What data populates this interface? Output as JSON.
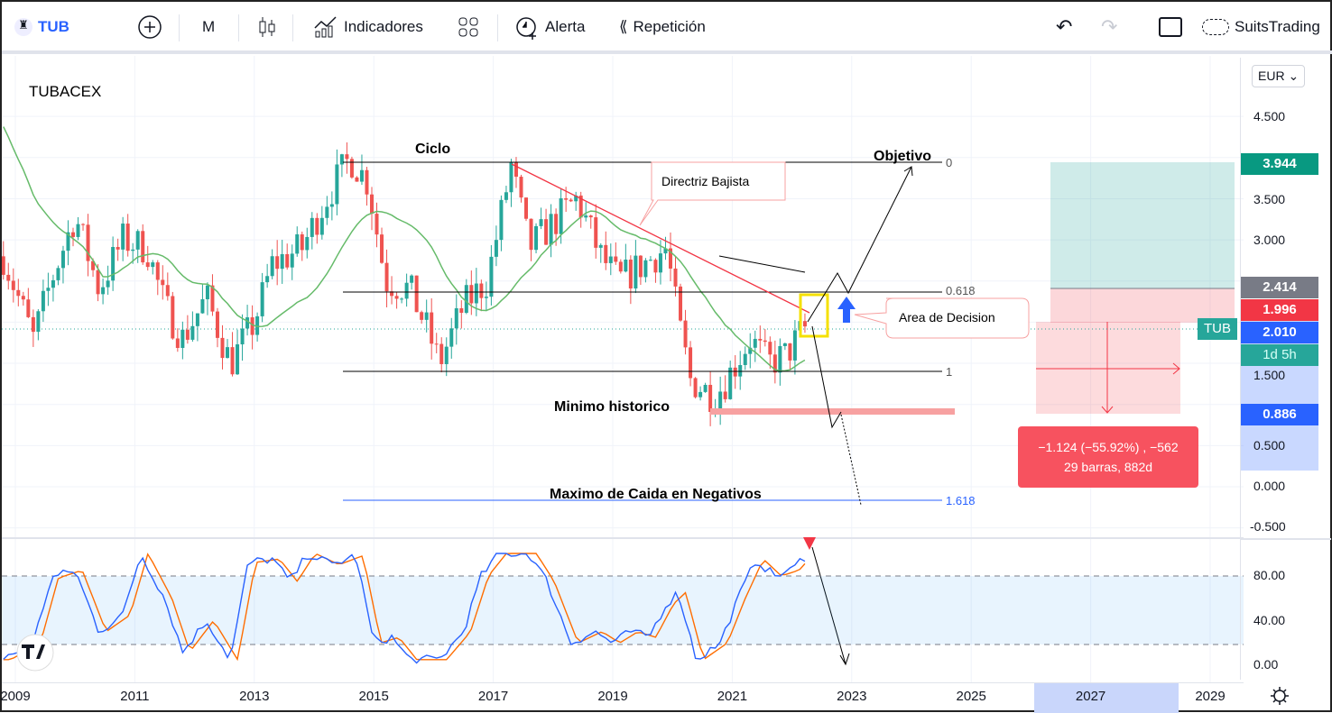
{
  "toolbar": {
    "symbol": "TUB",
    "interval": "M",
    "indicators": "Indicadores",
    "alert": "Alerta",
    "replay": "Repetición",
    "account": "SuitsTrading"
  },
  "chart": {
    "title": "TUBACEX",
    "currency": "EUR"
  },
  "price_axis": {
    "ticks": [
      "4.500",
      "3.500",
      "3.000",
      "1.500",
      "0.500",
      "0.000",
      "-0.500"
    ],
    "tags": {
      "target": "3.944",
      "entry": "2.414",
      "stop": "1.996",
      "current_blue": "2.010",
      "symbol": "TUB",
      "countdown": "1d 5h",
      "low": "0.886"
    }
  },
  "osc_axis": {
    "ticks": [
      "80.00",
      "40.00",
      "0.00"
    ]
  },
  "time_axis": {
    "ticks": [
      "2009",
      "2011",
      "2013",
      "2015",
      "2017",
      "2019",
      "2021",
      "2023",
      "2025",
      "2027",
      "2029"
    ]
  },
  "annotations": {
    "ciclo": "Ciclo",
    "objetivo": "Objetivo",
    "directriz": "Directriz Bajista",
    "area": "Area de Decision",
    "minimo": "Minimo historico",
    "maximo": "Maximo de Caida en Negativos",
    "fib_0": "0",
    "fib_618": "0.618",
    "fib_1": "1",
    "fib_1618": "1.618"
  },
  "measure": {
    "line1": "−1.124 (−55.92%) , −562",
    "line2": "29 barras, 882d"
  },
  "colors": {
    "up": "#26a69a",
    "down": "#ef5350",
    "ma": "#66bb6a",
    "k": "#2962ff",
    "d": "#ff6d00"
  },
  "chart_data": {
    "type": "candlestick",
    "price_anchors": [
      [
        2008.8,
        2.8
      ],
      [
        2009.3,
        1.8
      ],
      [
        2009.6,
        2.5
      ],
      [
        2010.0,
        3.3
      ],
      [
        2010.4,
        2.4
      ],
      [
        2010.8,
        3.0
      ],
      [
        2011.2,
        2.9
      ],
      [
        2011.5,
        2.2
      ],
      [
        2011.8,
        1.8
      ],
      [
        2012.2,
        2.3
      ],
      [
        2012.6,
        1.5
      ],
      [
        2013.0,
        2.0
      ],
      [
        2013.3,
        2.7
      ],
      [
        2013.8,
        2.9
      ],
      [
        2014.2,
        3.5
      ],
      [
        2014.6,
        4.0
      ],
      [
        2014.9,
        3.7
      ],
      [
        2015.2,
        2.5
      ],
      [
        2015.6,
        2.4
      ],
      [
        2015.9,
        1.9
      ],
      [
        2016.1,
        1.5
      ],
      [
        2016.5,
        2.2
      ],
      [
        2016.9,
        2.5
      ],
      [
        2017.3,
        3.9
      ],
      [
        2017.6,
        2.9
      ],
      [
        2018.0,
        3.2
      ],
      [
        2018.4,
        3.5
      ],
      [
        2018.8,
        2.8
      ],
      [
        2019.1,
        2.5
      ],
      [
        2019.5,
        2.7
      ],
      [
        2019.9,
        2.9
      ],
      [
        2020.1,
        2.0
      ],
      [
        2020.3,
        1.3
      ],
      [
        2020.7,
        1.1
      ],
      [
        2020.9,
        1.3
      ],
      [
        2021.3,
        1.8
      ],
      [
        2021.6,
        1.5
      ],
      [
        2021.9,
        1.6
      ],
      [
        2022.2,
        1.92
      ]
    ],
    "stoch_anchors": [
      [
        2008.8,
        5
      ],
      [
        2009.3,
        20
      ],
      [
        2009.6,
        78
      ],
      [
        2010.0,
        85
      ],
      [
        2010.4,
        30
      ],
      [
        2010.8,
        45
      ],
      [
        2011.1,
        100
      ],
      [
        2011.5,
        60
      ],
      [
        2011.8,
        12
      ],
      [
        2012.2,
        40
      ],
      [
        2012.6,
        5
      ],
      [
        2012.9,
        92
      ],
      [
        2013.3,
        95
      ],
      [
        2013.6,
        75
      ],
      [
        2013.9,
        100
      ],
      [
        2014.3,
        90
      ],
      [
        2014.7,
        98
      ],
      [
        2015.0,
        20
      ],
      [
        2015.3,
        25
      ],
      [
        2015.6,
        5
      ],
      [
        2016.1,
        5
      ],
      [
        2016.5,
        30
      ],
      [
        2016.8,
        80
      ],
      [
        2017.1,
        100
      ],
      [
        2017.6,
        100
      ],
      [
        2017.9,
        75
      ],
      [
        2018.3,
        20
      ],
      [
        2018.7,
        30
      ],
      [
        2019.0,
        20
      ],
      [
        2019.3,
        30
      ],
      [
        2019.6,
        25
      ],
      [
        2019.9,
        55
      ],
      [
        2020.1,
        65
      ],
      [
        2020.4,
        5
      ],
      [
        2020.8,
        20
      ],
      [
        2021.1,
        60
      ],
      [
        2021.4,
        95
      ],
      [
        2021.7,
        80
      ],
      [
        2022.0,
        85
      ],
      [
        2022.2,
        97
      ]
    ],
    "ma_window": 20,
    "ylim": [
      -0.6,
      4.9
    ],
    "stoch_levels": [
      20,
      80
    ]
  }
}
